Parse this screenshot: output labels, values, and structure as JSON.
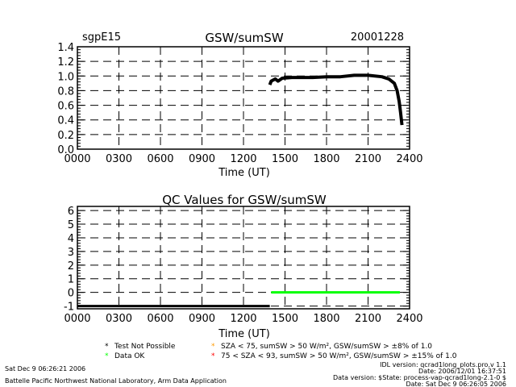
{
  "chart_data": [
    {
      "type": "line",
      "title": "GSW/sumSW",
      "site": "sgpE15",
      "date": "20001228",
      "xlabel": "Time (UT)",
      "ylabel": "",
      "xlim": [
        0,
        2400
      ],
      "ylim": [
        0.0,
        1.4
      ],
      "xticks": [
        "0000",
        "0300",
        "0600",
        "0900",
        "1200",
        "1500",
        "1800",
        "2100",
        "2400"
      ],
      "yticks": [
        "0.0",
        "0.2",
        "0.4",
        "0.6",
        "0.8",
        "1.0",
        "1.2",
        "1.4"
      ],
      "grid": true,
      "series": [
        {
          "name": "GSW/sumSW",
          "color": "#000000",
          "x": [
            1390,
            1400,
            1430,
            1450,
            1480,
            1550,
            1700,
            1800,
            1900,
            2000,
            2100,
            2200,
            2250,
            2290,
            2310,
            2325,
            2335,
            2345
          ],
          "y": [
            0.88,
            0.93,
            0.96,
            0.93,
            0.97,
            0.98,
            0.98,
            0.99,
            0.99,
            1.01,
            1.01,
            0.99,
            0.96,
            0.9,
            0.8,
            0.65,
            0.5,
            0.33
          ]
        }
      ]
    },
    {
      "type": "line",
      "title": "QC Values for GSW/sumSW",
      "xlabel": "Time (UT)",
      "xlim": [
        0,
        2400
      ],
      "ylim": [
        -1.2,
        6.3
      ],
      "xticks": [
        "0000",
        "0300",
        "0600",
        "0900",
        "1200",
        "1500",
        "1800",
        "2100",
        "2400"
      ],
      "yticks": [
        "-1",
        "0",
        "1",
        "2",
        "3",
        "4",
        "5",
        "6"
      ],
      "grid": true,
      "series": [
        {
          "name": "Test Not Possible",
          "color": "#000000",
          "x": [
            0,
            1390
          ],
          "y": [
            -1,
            -1
          ]
        },
        {
          "name": "Data OK",
          "color": "#00ff00",
          "x": [
            1400,
            2330
          ],
          "y": [
            0,
            0
          ]
        }
      ]
    }
  ],
  "legend": [
    {
      "symbol": "*",
      "color": "#000000",
      "text": "Test Not Possible"
    },
    {
      "symbol": "*",
      "color": "#00ff00",
      "text": "Data OK"
    },
    {
      "symbol": "*",
      "color": "#ff9900",
      "text": "SZA < 75, sumSW > 50 W/m², GSW/sumSW > ±8% of 1.0"
    },
    {
      "symbol": "*",
      "color": "#ff0000",
      "text": "75 < SZA < 93, sumSW > 50 W/m², GSW/sumSW > ±15% of 1.0"
    }
  ],
  "footer": {
    "timestamp": "Sat Dec  9 06:26:21 2006",
    "lab": "Battelle Pacific Northwest National Laboratory, Arm Data Application",
    "idl_version": "IDL version: qcrad1long_plots.pro,v 1.1",
    "idl_date": "Date: 2006/12/01 16:37:51",
    "data_version": "Data version: $State: process-vap-qcrad1long-2.1-0 $",
    "data_date": "Date: Sat Dec  9 06:26:05 2006"
  }
}
